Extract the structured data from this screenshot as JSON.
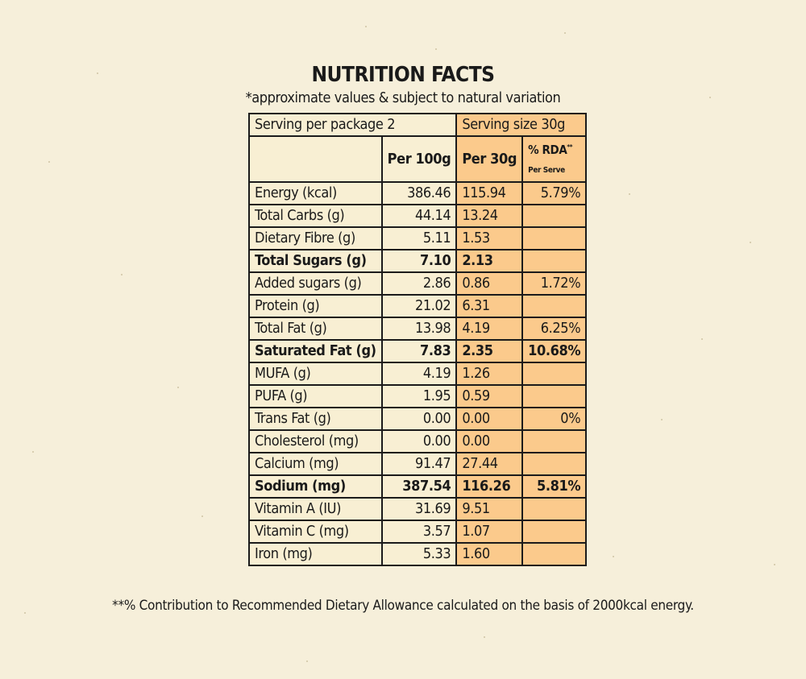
{
  "title": "NUTRITION FACTS",
  "subtitle": "*approximate values & subject to natural variation",
  "serving": {
    "per_package": "Serving per package 2",
    "size": "Serving size 30g"
  },
  "columns": {
    "per100": "Per 100g",
    "per30": "Per 30g",
    "rda": "% RDA",
    "rda_mark": "**",
    "rda_sub": "Per Serve"
  },
  "rows": [
    {
      "name": "Energy (kcal)",
      "per100": "386.46",
      "per30": "115.94",
      "rda": "5.79%",
      "bold": false
    },
    {
      "name": "Total Carbs (g)",
      "per100": "44.14",
      "per30": "13.24",
      "rda": "",
      "bold": false
    },
    {
      "name": "Dietary Fibre (g)",
      "per100": "5.11",
      "per30": "1.53",
      "rda": "",
      "bold": false
    },
    {
      "name": "Total Sugars (g)",
      "per100": "7.10",
      "per30": "2.13",
      "rda": "",
      "bold": true
    },
    {
      "name": "Added sugars (g)",
      "per100": "2.86",
      "per30": "0.86",
      "rda": "1.72%",
      "bold": false
    },
    {
      "name": "Protein (g)",
      "per100": "21.02",
      "per30": "6.31",
      "rda": "",
      "bold": false
    },
    {
      "name": "Total Fat (g)",
      "per100": "13.98",
      "per30": "4.19",
      "rda": "6.25%",
      "bold": false
    },
    {
      "name": "Saturated Fat (g)",
      "per100": "7.83",
      "per30": "2.35",
      "rda": "10.68%",
      "bold": true
    },
    {
      "name": "MUFA (g)",
      "per100": "4.19",
      "per30": "1.26",
      "rda": "",
      "bold": false
    },
    {
      "name": "PUFA (g)",
      "per100": "1.95",
      "per30": "0.59",
      "rda": "",
      "bold": false
    },
    {
      "name": "Trans Fat (g)",
      "per100": "0.00",
      "per30": "0.00",
      "rda": "0%",
      "bold": false
    },
    {
      "name": "Cholesterol (mg)",
      "per100": "0.00",
      "per30": "0.00",
      "rda": "",
      "bold": false
    },
    {
      "name": "Calcium (mg)",
      "per100": "91.47",
      "per30": "27.44",
      "rda": "",
      "bold": false
    },
    {
      "name": "Sodium (mg)",
      "per100": "387.54",
      "per30": "116.26",
      "rda": "5.81%",
      "bold": true
    },
    {
      "name": "Vitamin A (IU)",
      "per100": "31.69",
      "per30": "9.51",
      "rda": "",
      "bold": false
    },
    {
      "name": "Vitamin C (mg)",
      "per100": "3.57",
      "per30": "1.07",
      "rda": "",
      "bold": false
    },
    {
      "name": "Iron (mg)",
      "per100": "5.33",
      "per30": "1.60",
      "rda": "",
      "bold": false
    }
  ],
  "footnote": "**% Contribution to Recommended Dietary Allowance calculated on the basis of 2000kcal energy.",
  "colors": {
    "background": "#f6efda",
    "cell_light": "#f8efd3",
    "cell_orange": "#fbca8c",
    "border": "#1b1b1b"
  }
}
